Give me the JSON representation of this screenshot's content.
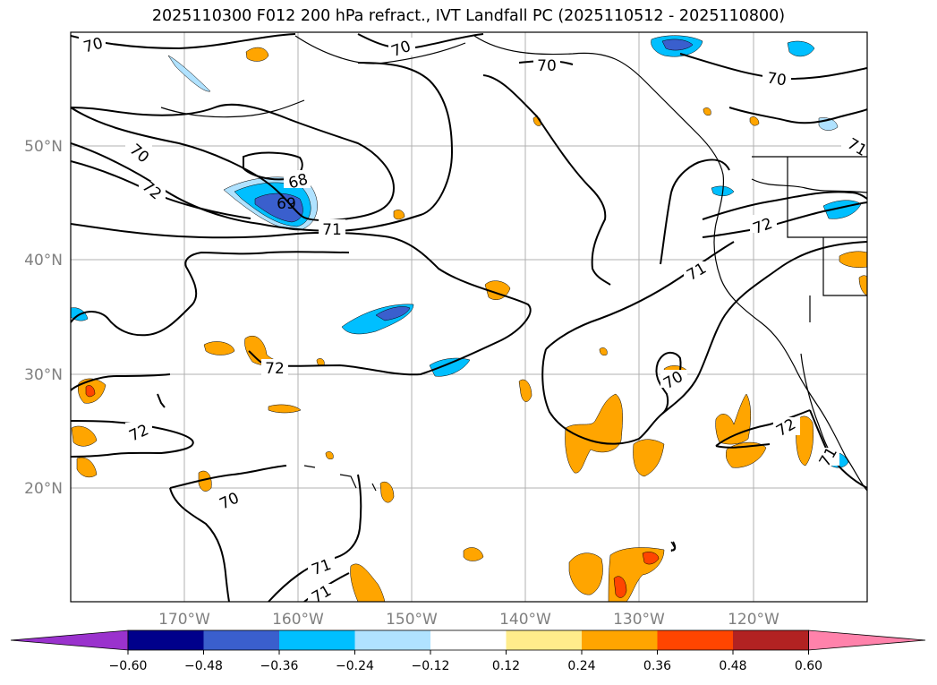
{
  "title": "2025110300 F012 200 hPa refract., IVT Landfall PC (2025110512 - 2025110800)",
  "map": {
    "lon_range": [
      180,
      110
    ],
    "lat_range": [
      10,
      60
    ],
    "lon_labels": [
      "170°W",
      "160°W",
      "150°W",
      "140°W",
      "130°W",
      "120°W"
    ],
    "lat_labels": [
      "50°N",
      "40°N",
      "30°N",
      "20°N"
    ],
    "gridlines": true
  },
  "contour_labels": [
    "70",
    "70",
    "70",
    "70",
    "71",
    "70",
    "72",
    "68",
    "69",
    "71",
    "72",
    "71",
    "72",
    "72",
    "70",
    "72",
    "71",
    "71",
    "71",
    "70"
  ],
  "colorbar": {
    "ticks": [
      "−0.60",
      "−0.48",
      "−0.36",
      "−0.24",
      "−0.12",
      "0.12",
      "0.24",
      "0.36",
      "0.48",
      "0.60"
    ],
    "colors": [
      "#9a32cd",
      "#00008b",
      "#3a5fcd",
      "#00bfff",
      "#b0e2ff",
      "#ffffff",
      "#ffec8b",
      "#ffa500",
      "#ff4500",
      "#b22222",
      "#ff82ab"
    ]
  }
}
